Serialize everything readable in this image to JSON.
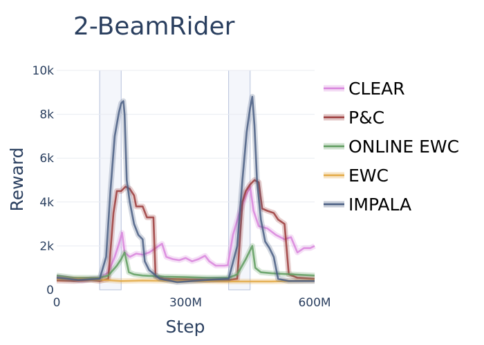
{
  "chart_data": {
    "type": "line",
    "title": "2-BeamRider",
    "xlabel": "Step",
    "ylabel": "Reward",
    "xlim": [
      0,
      600
    ],
    "ylim": [
      0,
      10000
    ],
    "x_ticks": [
      {
        "value": 0,
        "label": "0"
      },
      {
        "value": 300,
        "label": "300M"
      },
      {
        "value": 600,
        "label": "600M"
      }
    ],
    "y_ticks": [
      {
        "value": 0,
        "label": "0"
      },
      {
        "value": 2000,
        "label": "2k"
      },
      {
        "value": 4000,
        "label": "4k"
      },
      {
        "value": 6000,
        "label": "6k"
      },
      {
        "value": 8000,
        "label": "8k"
      },
      {
        "value": 10000,
        "label": "10k"
      }
    ],
    "grid": true,
    "legend_position": "right",
    "highlight_regions": [
      [
        100,
        150
      ],
      [
        400,
        450
      ]
    ],
    "series": [
      {
        "name": "CLEAR",
        "color": "#d884dc",
        "points": [
          [
            0,
            600
          ],
          [
            20,
            550
          ],
          [
            40,
            480
          ],
          [
            60,
            420
          ],
          [
            80,
            500
          ],
          [
            100,
            520
          ],
          [
            120,
            800
          ],
          [
            135,
            1500
          ],
          [
            145,
            2100
          ],
          [
            152,
            2600
          ],
          [
            158,
            1700
          ],
          [
            170,
            1500
          ],
          [
            185,
            1650
          ],
          [
            200,
            1600
          ],
          [
            215,
            1700
          ],
          [
            230,
            1900
          ],
          [
            245,
            2100
          ],
          [
            255,
            1500
          ],
          [
            270,
            1400
          ],
          [
            285,
            1350
          ],
          [
            300,
            1450
          ],
          [
            315,
            1300
          ],
          [
            330,
            1400
          ],
          [
            345,
            1550
          ],
          [
            355,
            1300
          ],
          [
            370,
            1100
          ],
          [
            390,
            1100
          ],
          [
            398,
            1120
          ],
          [
            410,
            2500
          ],
          [
            425,
            3500
          ],
          [
            440,
            4300
          ],
          [
            450,
            4700
          ],
          [
            458,
            3600
          ],
          [
            470,
            2900
          ],
          [
            490,
            2800
          ],
          [
            510,
            2500
          ],
          [
            530,
            2300
          ],
          [
            545,
            2400
          ],
          [
            560,
            1700
          ],
          [
            575,
            1900
          ],
          [
            590,
            1900
          ],
          [
            600,
            2000
          ]
        ]
      },
      {
        "name": "P&C",
        "color": "#9b3b3b",
        "points": [
          [
            0,
            420
          ],
          [
            40,
            400
          ],
          [
            80,
            450
          ],
          [
            100,
            400
          ],
          [
            120,
            500
          ],
          [
            132,
            3500
          ],
          [
            140,
            4500
          ],
          [
            150,
            4500
          ],
          [
            160,
            4700
          ],
          [
            170,
            4600
          ],
          [
            180,
            4300
          ],
          [
            185,
            3800
          ],
          [
            200,
            3800
          ],
          [
            210,
            3300
          ],
          [
            225,
            3300
          ],
          [
            230,
            600
          ],
          [
            250,
            500
          ],
          [
            300,
            480
          ],
          [
            350,
            450
          ],
          [
            400,
            450
          ],
          [
            420,
            500
          ],
          [
            432,
            4000
          ],
          [
            440,
            4500
          ],
          [
            450,
            4800
          ],
          [
            460,
            5000
          ],
          [
            470,
            4900
          ],
          [
            478,
            3700
          ],
          [
            490,
            3600
          ],
          [
            505,
            3500
          ],
          [
            515,
            3200
          ],
          [
            530,
            3000
          ],
          [
            540,
            700
          ],
          [
            560,
            550
          ],
          [
            600,
            500
          ]
        ]
      },
      {
        "name": "ONLINE EWC",
        "color": "#5f9c5f",
        "points": [
          [
            0,
            650
          ],
          [
            40,
            550
          ],
          [
            80,
            550
          ],
          [
            100,
            550
          ],
          [
            120,
            650
          ],
          [
            140,
            1100
          ],
          [
            150,
            1400
          ],
          [
            158,
            1700
          ],
          [
            168,
            800
          ],
          [
            180,
            700
          ],
          [
            200,
            650
          ],
          [
            250,
            600
          ],
          [
            300,
            580
          ],
          [
            350,
            550
          ],
          [
            400,
            550
          ],
          [
            420,
            700
          ],
          [
            440,
            1400
          ],
          [
            455,
            2000
          ],
          [
            462,
            1000
          ],
          [
            475,
            800
          ],
          [
            500,
            750
          ],
          [
            550,
            700
          ],
          [
            600,
            650
          ]
        ]
      },
      {
        "name": "EWC",
        "color": "#e3a944",
        "points": [
          [
            0,
            500
          ],
          [
            60,
            480
          ],
          [
            110,
            450
          ],
          [
            150,
            400
          ],
          [
            200,
            420
          ],
          [
            300,
            400
          ],
          [
            400,
            380
          ],
          [
            500,
            380
          ],
          [
            600,
            420
          ]
        ]
      },
      {
        "name": "IMPALA",
        "color": "#4a5e82",
        "points": [
          [
            0,
            550
          ],
          [
            50,
            450
          ],
          [
            100,
            500
          ],
          [
            115,
            1500
          ],
          [
            125,
            4500
          ],
          [
            135,
            7000
          ],
          [
            145,
            8100
          ],
          [
            150,
            8500
          ],
          [
            155,
            8600
          ],
          [
            158,
            8000
          ],
          [
            163,
            5000
          ],
          [
            170,
            4000
          ],
          [
            180,
            3000
          ],
          [
            190,
            2500
          ],
          [
            200,
            2300
          ],
          [
            205,
            1300
          ],
          [
            215,
            900
          ],
          [
            240,
            500
          ],
          [
            280,
            350
          ],
          [
            350,
            450
          ],
          [
            400,
            500
          ],
          [
            420,
            2000
          ],
          [
            432,
            5000
          ],
          [
            442,
            7200
          ],
          [
            450,
            8300
          ],
          [
            455,
            8800
          ],
          [
            460,
            7500
          ],
          [
            466,
            5000
          ],
          [
            475,
            3200
          ],
          [
            485,
            2200
          ],
          [
            495,
            1900
          ],
          [
            505,
            1500
          ],
          [
            515,
            500
          ],
          [
            540,
            400
          ],
          [
            600,
            400
          ]
        ]
      }
    ]
  }
}
